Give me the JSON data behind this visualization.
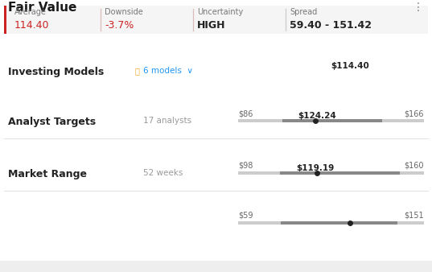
{
  "title": "Fair Value",
  "bg_color": "#ffffff",
  "title_fontsize": 11,
  "menu_dots": "⋮",
  "stats": [
    {
      "label": "Average",
      "value": "114.40",
      "value_color": "#cc2222"
    },
    {
      "label": "Downside",
      "value": "-3.7%",
      "value_color": "#cc2222"
    },
    {
      "label": "Uncertainty",
      "value": "HIGH",
      "value_color": "#222222"
    },
    {
      "label": "Spread",
      "value": "59.40 - 151.42",
      "value_color": "#222222"
    }
  ],
  "rows": [
    {
      "label": "Market Range",
      "sublabel": "52 weeks",
      "value_label": "$119.19",
      "range_min": 86,
      "range_max": 166,
      "dot_value": 119.19,
      "dark_min": 105,
      "dark_max": 148,
      "left_tick": "$86",
      "right_tick": "$166"
    },
    {
      "label": "Analyst Targets",
      "sublabel": "17 analysts",
      "value_label": "$124.24",
      "range_min": 98,
      "range_max": 160,
      "dot_value": 124.24,
      "dark_min": 112,
      "dark_max": 152,
      "left_tick": "$98",
      "right_tick": "$160"
    },
    {
      "label": "Investing Models",
      "has_icon": true,
      "icon_color": "#f5a623",
      "sublabel": "6 models",
      "sublabel_color": "#2196f3",
      "sublabel_arrow": true,
      "value_label": "$114.40",
      "range_min": 59,
      "range_max": 151,
      "dot_value": 114.4,
      "dark_min": 80,
      "dark_max": 138,
      "left_tick": "$59",
      "right_tick": "$151"
    }
  ],
  "bar_color_light": "#cccccc",
  "bar_color_dark": "#888888",
  "dot_color": "#222222",
  "tick_label_color": "#666666",
  "value_label_color": "#222222",
  "sublabel_color": "#999999",
  "label_color": "#222222",
  "sep_color": "#e0e0e0",
  "panel_bg": "#f5f5f5",
  "bottom_bg": "#eeeeee"
}
